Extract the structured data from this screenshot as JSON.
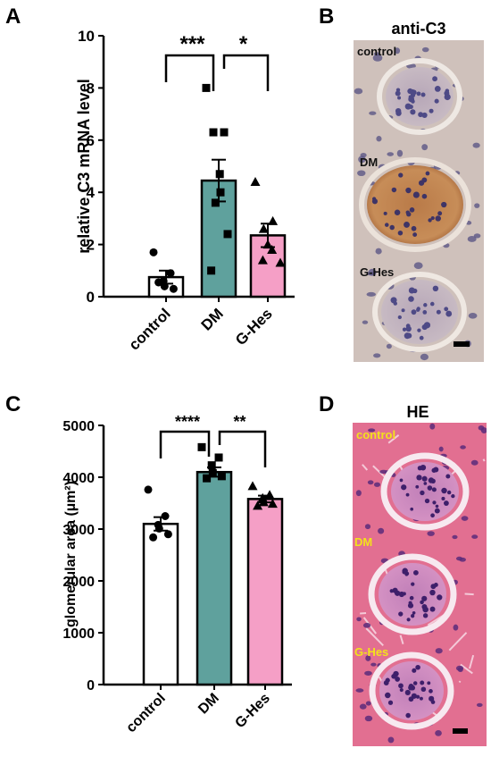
{
  "panels": {
    "A": "A",
    "B": "B",
    "C": "C",
    "D": "D"
  },
  "colors": {
    "control": "#ffffff",
    "DM": "#5fa19d",
    "G-Hes": "#f59fc6",
    "stain_bg": "#cdbfb9",
    "he_bg": "#e06b8e",
    "he_label": "#f3e21a"
  },
  "chart_data": [
    {
      "type": "bar",
      "panel": "A",
      "categories": [
        "control",
        "DM",
        "G-Hes"
      ],
      "values": [
        0.75,
        4.45,
        2.35
      ],
      "sem": [
        0.25,
        0.8,
        0.45
      ],
      "points": [
        [
          1.7,
          0.9,
          0.6,
          0.4,
          0.3,
          0.55
        ],
        [
          8.0,
          6.3,
          6.3,
          4.7,
          4.0,
          3.6,
          2.4,
          1.0
        ],
        [
          4.4,
          2.9,
          2.6,
          2.0,
          1.8,
          1.4,
          1.3
        ]
      ],
      "markers": [
        "circle",
        "square",
        "triangle"
      ],
      "ylabel": "relative C3 mRNA level",
      "ylim": [
        0,
        10
      ],
      "yticks": [
        "0",
        "2",
        "4",
        "6",
        "8",
        "10"
      ],
      "significance": [
        {
          "from": "control",
          "to": "DM",
          "label": "***"
        },
        {
          "from": "DM",
          "to": "G-Hes",
          "label": "*"
        }
      ]
    },
    {
      "type": "bar",
      "panel": "C",
      "categories": [
        "control",
        "DM",
        "G-Hes"
      ],
      "values": [
        3100,
        4100,
        3580
      ],
      "sem": [
        130,
        90,
        65
      ],
      "points": [
        [
          3760,
          3250,
          3080,
          3010,
          2900,
          2840
        ],
        [
          4580,
          4380,
          4230,
          4080,
          4020,
          3980
        ],
        [
          3830,
          3660,
          3600,
          3520,
          3490,
          3450
        ]
      ],
      "markers": [
        "circle",
        "square",
        "triangle"
      ],
      "ylabel": "glomerular area (µm²)",
      "ylim": [
        0,
        5000
      ],
      "yticks": [
        "0",
        "1000",
        "2000",
        "3000",
        "4000",
        "5000"
      ],
      "significance": [
        {
          "from": "control",
          "to": "DM",
          "label": "****"
        },
        {
          "from": "DM",
          "to": "G-Hes",
          "label": "**"
        }
      ]
    }
  ],
  "micrographs": {
    "B": {
      "title": "anti-C3",
      "labels": [
        "control",
        "DM",
        "G-Hes"
      ]
    },
    "D": {
      "title": "HE",
      "labels": [
        "control",
        "DM",
        "G-Hes"
      ]
    }
  }
}
